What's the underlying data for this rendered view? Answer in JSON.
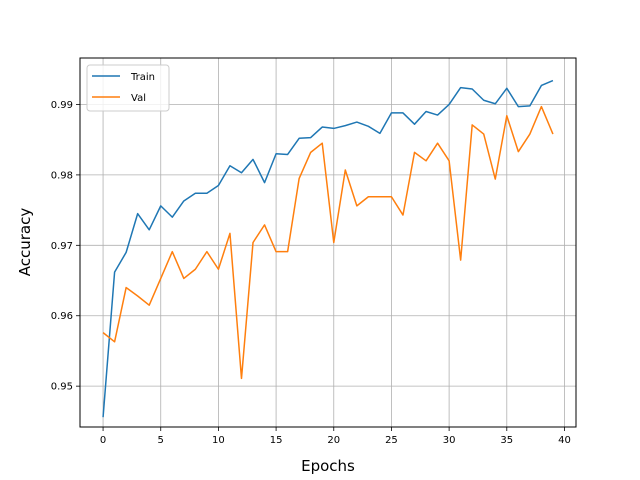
{
  "chart_data": {
    "type": "line",
    "xlabel": "Epochs",
    "ylabel": "Accuracy",
    "xlim": [
      -2,
      41
    ],
    "ylim": [
      0.9442,
      0.9966
    ],
    "xticks": [
      0,
      5,
      10,
      15,
      20,
      25,
      30,
      35,
      40
    ],
    "yticks": [
      0.95,
      0.96,
      0.97,
      0.98,
      0.99
    ],
    "xtick_labels": [
      "0",
      "5",
      "10",
      "15",
      "20",
      "25",
      "30",
      "35",
      "40"
    ],
    "ytick_labels": [
      "0.95",
      "0.96",
      "0.97",
      "0.98",
      "0.99"
    ],
    "grid": true,
    "legend_position": "upper-left",
    "x": [
      0,
      1,
      2,
      3,
      4,
      5,
      6,
      7,
      8,
      9,
      10,
      11,
      12,
      13,
      14,
      15,
      16,
      17,
      18,
      19,
      20,
      21,
      22,
      23,
      24,
      25,
      26,
      27,
      28,
      29,
      30,
      31,
      32,
      33,
      34,
      35,
      36,
      37,
      38,
      39
    ],
    "series": [
      {
        "name": "Train",
        "color": "#1f77b4",
        "values": [
          0.9456,
          0.9662,
          0.969,
          0.9745,
          0.9722,
          0.9756,
          0.974,
          0.9763,
          0.9774,
          0.9774,
          0.9785,
          0.9813,
          0.9803,
          0.9822,
          0.9789,
          0.983,
          0.9829,
          0.9852,
          0.9853,
          0.9868,
          0.9866,
          0.987,
          0.9875,
          0.9869,
          0.9859,
          0.9888,
          0.9888,
          0.9872,
          0.989,
          0.9885,
          0.99,
          0.9924,
          0.9922,
          0.9906,
          0.9901,
          0.9923,
          0.9897,
          0.9898,
          0.9927,
          0.9934
        ]
      },
      {
        "name": "Val",
        "color": "#ff7f0e",
        "values": [
          0.9576,
          0.9563,
          0.964,
          0.9628,
          0.9615,
          0.9653,
          0.9691,
          0.9653,
          0.9666,
          0.9691,
          0.9666,
          0.9717,
          0.9511,
          0.9704,
          0.9729,
          0.9691,
          0.9691,
          0.9795,
          0.9832,
          0.9845,
          0.9704,
          0.9807,
          0.9756,
          0.9769,
          0.9769,
          0.9769,
          0.9743,
          0.9832,
          0.982,
          0.9845,
          0.982,
          0.9679,
          0.9871,
          0.9858,
          0.9794,
          0.9884,
          0.9833,
          0.9858,
          0.9897,
          0.9858
        ]
      }
    ]
  }
}
